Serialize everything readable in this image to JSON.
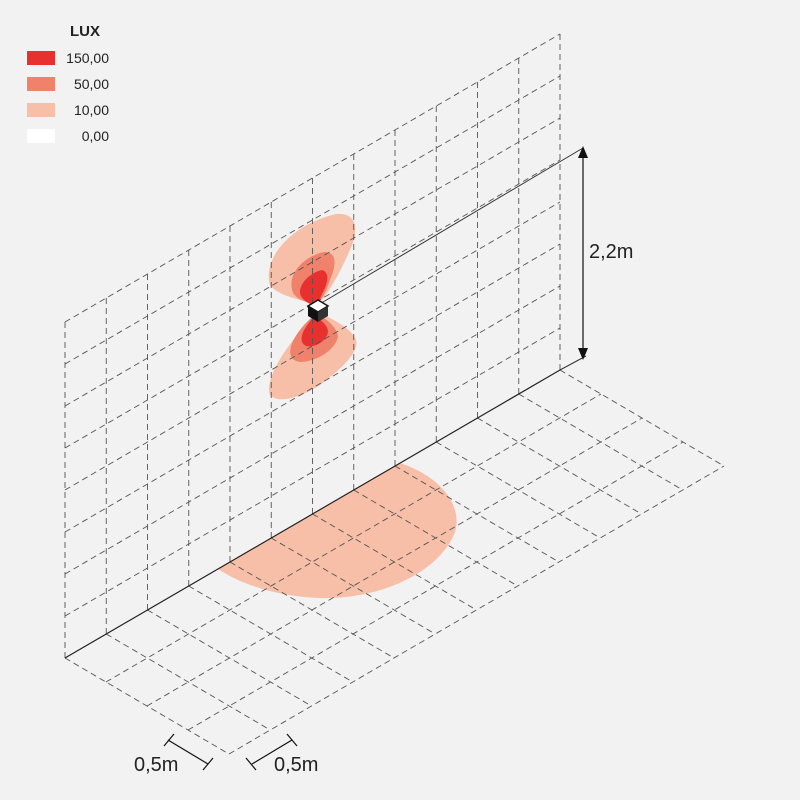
{
  "legend": {
    "title": "LUX",
    "items": [
      {
        "label": "150,00",
        "color": "#e8312f"
      },
      {
        "label": "50,00",
        "color": "#f0826c"
      },
      {
        "label": "10,00",
        "color": "#f7bfa8"
      },
      {
        "label": "0,00",
        "color": "#ffffff"
      }
    ]
  },
  "dimensions": {
    "height": "2,2m",
    "depth": "0,5m",
    "width": "0,5m"
  }
}
